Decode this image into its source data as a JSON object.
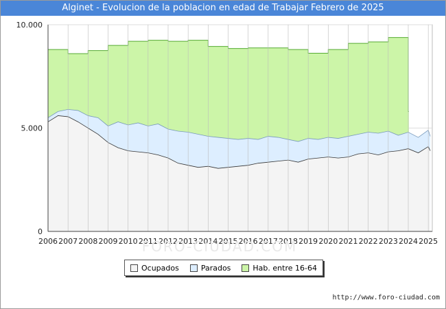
{
  "title": "Alginet - Evolucion de la poblacion en edad de Trabajar Febrero de 2025",
  "url": "http://www.foro-ciudad.com",
  "watermark": "FORO-CIUDAD.COM",
  "colors": {
    "hab": "#ccf5a8",
    "hab_line": "#55aa33",
    "parados": "#ddeeff",
    "parados_line": "#7799bb",
    "ocupados": "#f4f4f4",
    "ocupados_line": "#333333",
    "title_bg": "#4a86d8"
  },
  "chart_data": {
    "type": "area",
    "title": "Alginet - Evolucion de la poblacion en edad de Trabajar Febrero de 2025",
    "xlabel": "",
    "ylabel": "",
    "xlim": [
      2006,
      2025.2
    ],
    "ylim": [
      0,
      10000
    ],
    "y_ticks": [
      0,
      5000,
      10000
    ],
    "y_tick_labels": [
      "0",
      "5.000",
      "10.000"
    ],
    "x_ticks": [
      2006,
      2007,
      2008,
      2009,
      2010,
      2011,
      2012,
      2013,
      2014,
      2015,
      2016,
      2017,
      2018,
      2019,
      2020,
      2021,
      2022,
      2023,
      2024,
      2025
    ],
    "x_tick_labels": [
      "2006",
      "2007",
      "2008",
      "2009",
      "2010",
      "2011",
      "2012",
      "2013",
      "2014",
      "2015",
      "2016",
      "2017",
      "2018",
      "2019",
      "2020",
      "2021",
      "2022",
      "2023",
      "2024",
      "2025"
    ],
    "legend": [
      "Ocupados",
      "Parados",
      "Hab. entre 16-64"
    ],
    "legend_position": "bottom",
    "grid": true,
    "series": [
      {
        "name": "Hab. entre 16-64",
        "x": [
          2006,
          2007,
          2008,
          2009,
          2010,
          2011,
          2012,
          2013,
          2014,
          2015,
          2016,
          2017,
          2018,
          2019,
          2020,
          2021,
          2022,
          2023,
          2024
        ],
        "values": [
          8800,
          8600,
          8750,
          9000,
          9200,
          9250,
          9200,
          9250,
          8950,
          8850,
          8880,
          8880,
          8800,
          8620,
          8800,
          9100,
          9170,
          9380,
          5800
        ]
      },
      {
        "name": "Parados",
        "x": [
          2006,
          2006.5,
          2007,
          2007.5,
          2008,
          2008.5,
          2009,
          2009.5,
          2010,
          2010.5,
          2011,
          2011.5,
          2012,
          2012.5,
          2013,
          2013.5,
          2014,
          2014.5,
          2015,
          2015.5,
          2016,
          2016.5,
          2017,
          2017.5,
          2018,
          2018.5,
          2019,
          2019.5,
          2020,
          2020.5,
          2021,
          2021.5,
          2022,
          2022.5,
          2023,
          2023.5,
          2024,
          2024.5,
          2025,
          2025.1
        ],
        "values": [
          5500,
          5800,
          5900,
          5850,
          5600,
          5500,
          5100,
          5300,
          5150,
          5250,
          5100,
          5200,
          4950,
          4850,
          4800,
          4700,
          4600,
          4550,
          4500,
          4450,
          4500,
          4450,
          4600,
          4550,
          4450,
          4350,
          4500,
          4450,
          4550,
          4500,
          4600,
          4700,
          4800,
          4750,
          4850,
          4650,
          4800,
          4550,
          4900,
          4600
        ]
      },
      {
        "name": "Ocupados",
        "x": [
          2006,
          2006.5,
          2007,
          2007.5,
          2008,
          2008.5,
          2009,
          2009.5,
          2010,
          2010.5,
          2011,
          2011.5,
          2012,
          2012.5,
          2013,
          2013.5,
          2014,
          2014.5,
          2015,
          2015.5,
          2016,
          2016.5,
          2017,
          2017.5,
          2018,
          2018.5,
          2019,
          2019.5,
          2020,
          2020.5,
          2021,
          2021.5,
          2022,
          2022.5,
          2023,
          2023.5,
          2024,
          2024.5,
          2025,
          2025.1
        ],
        "values": [
          5300,
          5600,
          5550,
          5300,
          5000,
          4700,
          4300,
          4050,
          3900,
          3850,
          3800,
          3700,
          3550,
          3300,
          3200,
          3100,
          3150,
          3050,
          3100,
          3150,
          3200,
          3300,
          3350,
          3400,
          3450,
          3350,
          3500,
          3550,
          3600,
          3550,
          3600,
          3750,
          3800,
          3700,
          3850,
          3900,
          4000,
          3800,
          4100,
          3900
        ]
      }
    ]
  }
}
